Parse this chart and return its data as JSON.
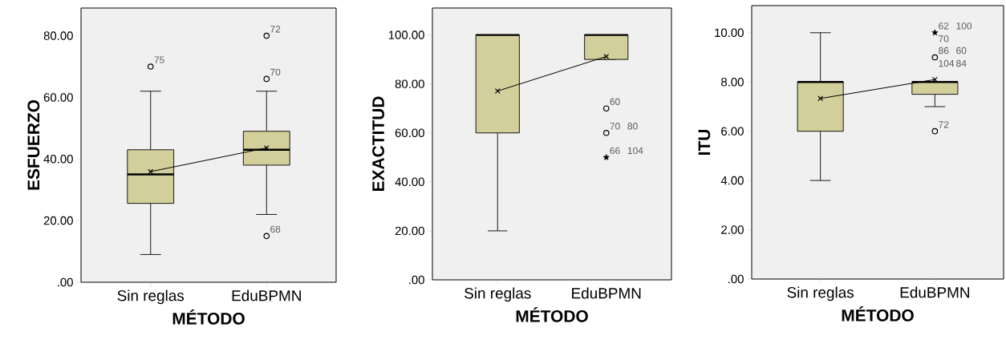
{
  "chart_data": [
    {
      "type": "box",
      "categories": [
        "Sin reglas",
        "EduBPMN"
      ],
      "xlabel": "MÉTODO",
      "ylabel": "ESFUERZO",
      "ylim": [
        0,
        89
      ],
      "yticks": [
        {
          "value": 0,
          "label": ".00"
        },
        {
          "value": 20,
          "label": "20.00"
        },
        {
          "value": 40,
          "label": "40.00"
        },
        {
          "value": 60,
          "label": "60.00"
        },
        {
          "value": 80,
          "label": "80.00"
        }
      ],
      "series": [
        {
          "type": "box",
          "color": "#d3cf9b",
          "boxes": [
            {
              "low": 9,
              "q1": 25.6,
              "median": 35,
              "q3": 43,
              "high": 62
            },
            {
              "low": 22,
              "q1": 38,
              "median": 43,
              "q3": 49,
              "high": 62
            }
          ]
        },
        {
          "type": "line",
          "color": "#000000",
          "marker": "cross",
          "values": [
            35.9,
            43.6
          ]
        },
        {
          "type": "scatter",
          "color": "#000000",
          "marker": "circle",
          "x": [
            "Sin reglas",
            "EduBPMN",
            "EduBPMN",
            "EduBPMN"
          ],
          "values": [
            70,
            80,
            66,
            15
          ]
        }
      ],
      "annotations": [
        {
          "text": "75",
          "x": "Sin reglas",
          "y": 70
        },
        {
          "text": "72",
          "x": "EduBPMN",
          "y": 80
        },
        {
          "text": "70",
          "x": "EduBPMN",
          "y": 66
        },
        {
          "text": "68",
          "x": "EduBPMN",
          "y": 15
        }
      ]
    },
    {
      "type": "box",
      "categories": [
        "Sin reglas",
        "EduBPMN"
      ],
      "xlabel": "MÉTODO",
      "ylabel": "EXACTITUD",
      "ylim": [
        0,
        111
      ],
      "yticks": [
        {
          "value": 0,
          "label": ".00"
        },
        {
          "value": 20,
          "label": "20.00"
        },
        {
          "value": 40,
          "label": "40.00"
        },
        {
          "value": 60,
          "label": "60.00"
        },
        {
          "value": 80,
          "label": "80.00"
        },
        {
          "value": 100,
          "label": "100.00"
        }
      ],
      "series": [
        {
          "type": "box",
          "color": "#d3cf9b",
          "boxes": [
            {
              "low": 20,
              "q1": 60,
              "median": 100,
              "q3": 100,
              "high": 100
            },
            {
              "low": 90,
              "q1": 90,
              "median": 100,
              "q3": 100,
              "high": 100
            }
          ]
        },
        {
          "type": "line",
          "color": "#000000",
          "marker": "cross",
          "values": [
            77.1,
            91.2
          ]
        },
        {
          "type": "scatter",
          "color": "#000000",
          "marker": "circle",
          "x": [
            "EduBPMN",
            "EduBPMN"
          ],
          "values": [
            70,
            60
          ]
        },
        {
          "type": "scatter",
          "color": "#000000",
          "marker": "star",
          "x": [
            "EduBPMN"
          ],
          "values": [
            50
          ]
        }
      ],
      "annotations": [
        {
          "text": "60",
          "x": "EduBPMN",
          "y": 70
        },
        {
          "text": "70",
          "x": "EduBPMN",
          "y": 60
        },
        {
          "text": "80",
          "x": "EduBPMN",
          "y": 60
        },
        {
          "text": "66",
          "x": "EduBPMN",
          "y": 50
        },
        {
          "text": "104",
          "x": "EduBPMN",
          "y": 50
        }
      ]
    },
    {
      "type": "box",
      "categories": [
        "Sin reglas",
        "EduBPMN"
      ],
      "xlabel": "MÉTODO",
      "ylabel": "ITU",
      "ylim": [
        0,
        11.1
      ],
      "yticks": [
        {
          "value": 0,
          "label": ".00"
        },
        {
          "value": 2,
          "label": "2.00"
        },
        {
          "value": 4,
          "label": "4.00"
        },
        {
          "value": 6,
          "label": "6.00"
        },
        {
          "value": 8,
          "label": "8.00"
        },
        {
          "value": 10,
          "label": "10.00"
        }
      ],
      "series": [
        {
          "type": "box",
          "color": "#d3cf9b",
          "boxes": [
            {
              "low": 4,
              "q1": 6,
              "median": 8,
              "q3": 8,
              "high": 10
            },
            {
              "low": 7,
              "q1": 7.5,
              "median": 8,
              "q3": 8,
              "high": 8
            }
          ]
        },
        {
          "type": "line",
          "color": "#000000",
          "marker": "cross",
          "values": [
            7.33,
            8.1
          ]
        },
        {
          "type": "scatter",
          "color": "#000000",
          "marker": "circle",
          "x": [
            "EduBPMN",
            "EduBPMN"
          ],
          "values": [
            9,
            6
          ]
        },
        {
          "type": "scatter",
          "color": "#000000",
          "marker": "star",
          "x": [
            "EduBPMN"
          ],
          "values": [
            10
          ]
        }
      ],
      "annotations": [
        {
          "text": "62",
          "x": "EduBPMN",
          "y": 10
        },
        {
          "text": "100",
          "x": "EduBPMN",
          "y": 10
        },
        {
          "text": "70",
          "x": "EduBPMN",
          "y": 10
        },
        {
          "text": "86",
          "x": "EduBPMN",
          "y": 9
        },
        {
          "text": "60",
          "x": "EduBPMN",
          "y": 9
        },
        {
          "text": "104",
          "x": "EduBPMN",
          "y": 9
        },
        {
          "text": "84",
          "x": "EduBPMN",
          "y": 9
        },
        {
          "text": "72",
          "x": "EduBPMN",
          "y": 6
        }
      ]
    }
  ]
}
